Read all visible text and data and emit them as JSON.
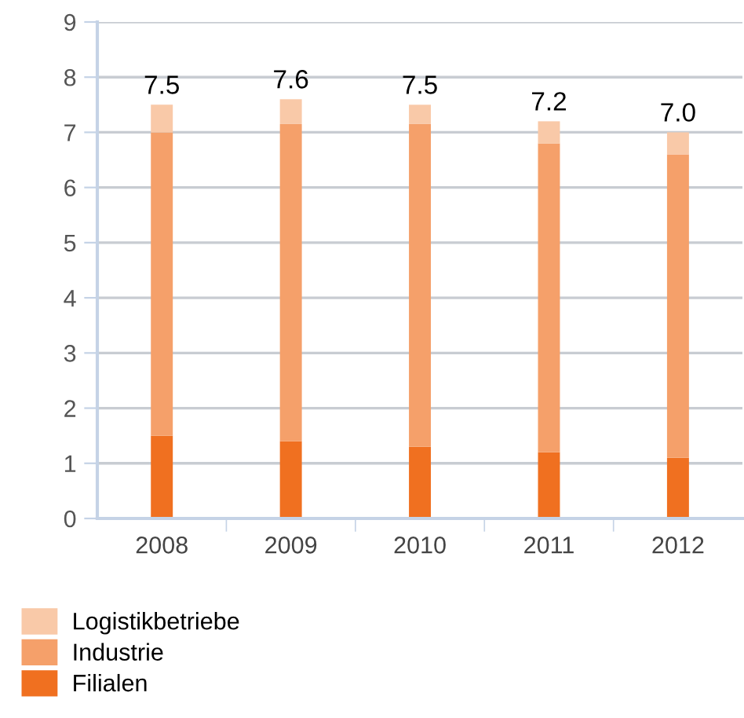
{
  "chart_data": {
    "type": "bar",
    "stacked": true,
    "categories": [
      "2008",
      "2009",
      "2010",
      "2011",
      "2012"
    ],
    "series": [
      {
        "name": "Filialen",
        "color": "#f07020",
        "values": [
          1.5,
          1.4,
          1.3,
          1.2,
          1.1
        ]
      },
      {
        "name": "Industrie",
        "color": "#f5a06a",
        "values": [
          5.5,
          5.75,
          5.85,
          5.6,
          5.5
        ]
      },
      {
        "name": "Logistikbetriebe",
        "color": "#f9c9a8",
        "values": [
          0.5,
          0.45,
          0.35,
          0.4,
          0.4
        ]
      }
    ],
    "totals": [
      "7.5",
      "7.6",
      "7.5",
      "7.2",
      "7.0"
    ],
    "ylim": [
      0,
      9
    ],
    "yticks": [
      0,
      1,
      2,
      3,
      4,
      5,
      6,
      7,
      8,
      9
    ],
    "grid": "y",
    "legend": "bottom left"
  }
}
